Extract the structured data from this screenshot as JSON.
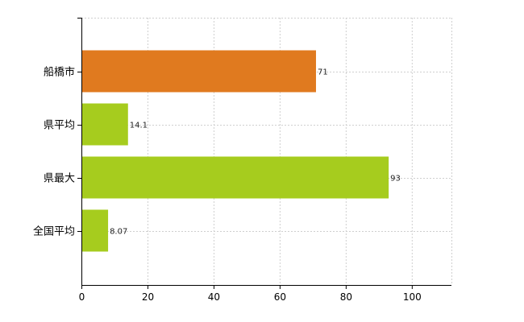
{
  "chart_data": {
    "type": "bar",
    "orientation": "horizontal",
    "categories": [
      "船橋市",
      "県平均",
      "県最大",
      "全国平均"
    ],
    "values": [
      71,
      14.1,
      93,
      8.07
    ],
    "value_labels": [
      "71",
      "14.1",
      "93",
      "8.07"
    ],
    "xlim": [
      0,
      112
    ],
    "x_ticks": [
      0,
      20,
      40,
      60,
      80,
      100
    ],
    "x_tick_labels": [
      "0",
      "20",
      "40",
      "60",
      "80",
      "100"
    ],
    "grid": true,
    "colors": [
      "#e07a1f",
      "#a6cc1e",
      "#a6cc1e",
      "#a6cc1e"
    ]
  }
}
